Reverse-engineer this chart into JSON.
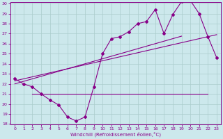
{
  "xlabel": "Windchill (Refroidissement éolien,°C)",
  "bg_color": "#cce8ec",
  "grid_color": "#aacccc",
  "line_color": "#880088",
  "x_hours": [
    0,
    1,
    2,
    3,
    4,
    5,
    6,
    7,
    8,
    9,
    10,
    11,
    12,
    13,
    14,
    15,
    16,
    17,
    18,
    19,
    20,
    21,
    22,
    23
  ],
  "temp_curve": [
    22.5,
    22.0,
    21.7,
    21.0,
    20.4,
    19.9,
    18.7,
    18.3,
    18.7,
    21.7,
    25.0,
    26.5,
    26.7,
    27.2,
    28.0,
    28.2,
    29.4,
    27.0,
    28.9,
    30.2,
    30.3,
    29.0,
    26.7,
    24.6
  ],
  "hline_y": 21.0,
  "hline_x_start": 2,
  "hline_x_end": 22,
  "trend1_x": [
    0,
    1,
    2,
    3,
    4,
    5,
    6,
    7,
    8,
    9,
    10,
    11,
    12,
    13,
    14,
    15,
    16,
    17,
    18,
    19,
    20,
    21,
    22,
    23
  ],
  "trend1_y": [
    22.3,
    22.5,
    22.7,
    22.9,
    23.1,
    23.3,
    23.5,
    23.7,
    23.9,
    24.1,
    24.3,
    24.5,
    24.7,
    24.9,
    25.1,
    25.3,
    25.5,
    25.7,
    25.9,
    26.1,
    26.3,
    26.5,
    26.7,
    26.9
  ],
  "trend2_x": [
    0,
    1,
    2,
    3,
    4,
    5,
    6,
    7,
    8,
    9,
    10,
    11,
    12,
    13,
    14,
    15,
    16,
    17,
    18,
    19
  ],
  "trend2_y": [
    22.0,
    22.25,
    22.5,
    22.75,
    23.0,
    23.25,
    23.5,
    23.75,
    24.0,
    24.25,
    24.5,
    24.75,
    25.0,
    25.25,
    25.5,
    25.75,
    26.0,
    26.25,
    26.5,
    26.75
  ],
  "ylim_min": 18,
  "ylim_max": 30,
  "yticks": [
    18,
    19,
    20,
    21,
    22,
    23,
    24,
    25,
    26,
    27,
    28,
    29,
    30
  ],
  "xticks": [
    0,
    1,
    2,
    3,
    4,
    5,
    6,
    7,
    8,
    9,
    10,
    11,
    12,
    13,
    14,
    15,
    16,
    17,
    18,
    19,
    20,
    21,
    22,
    23
  ]
}
